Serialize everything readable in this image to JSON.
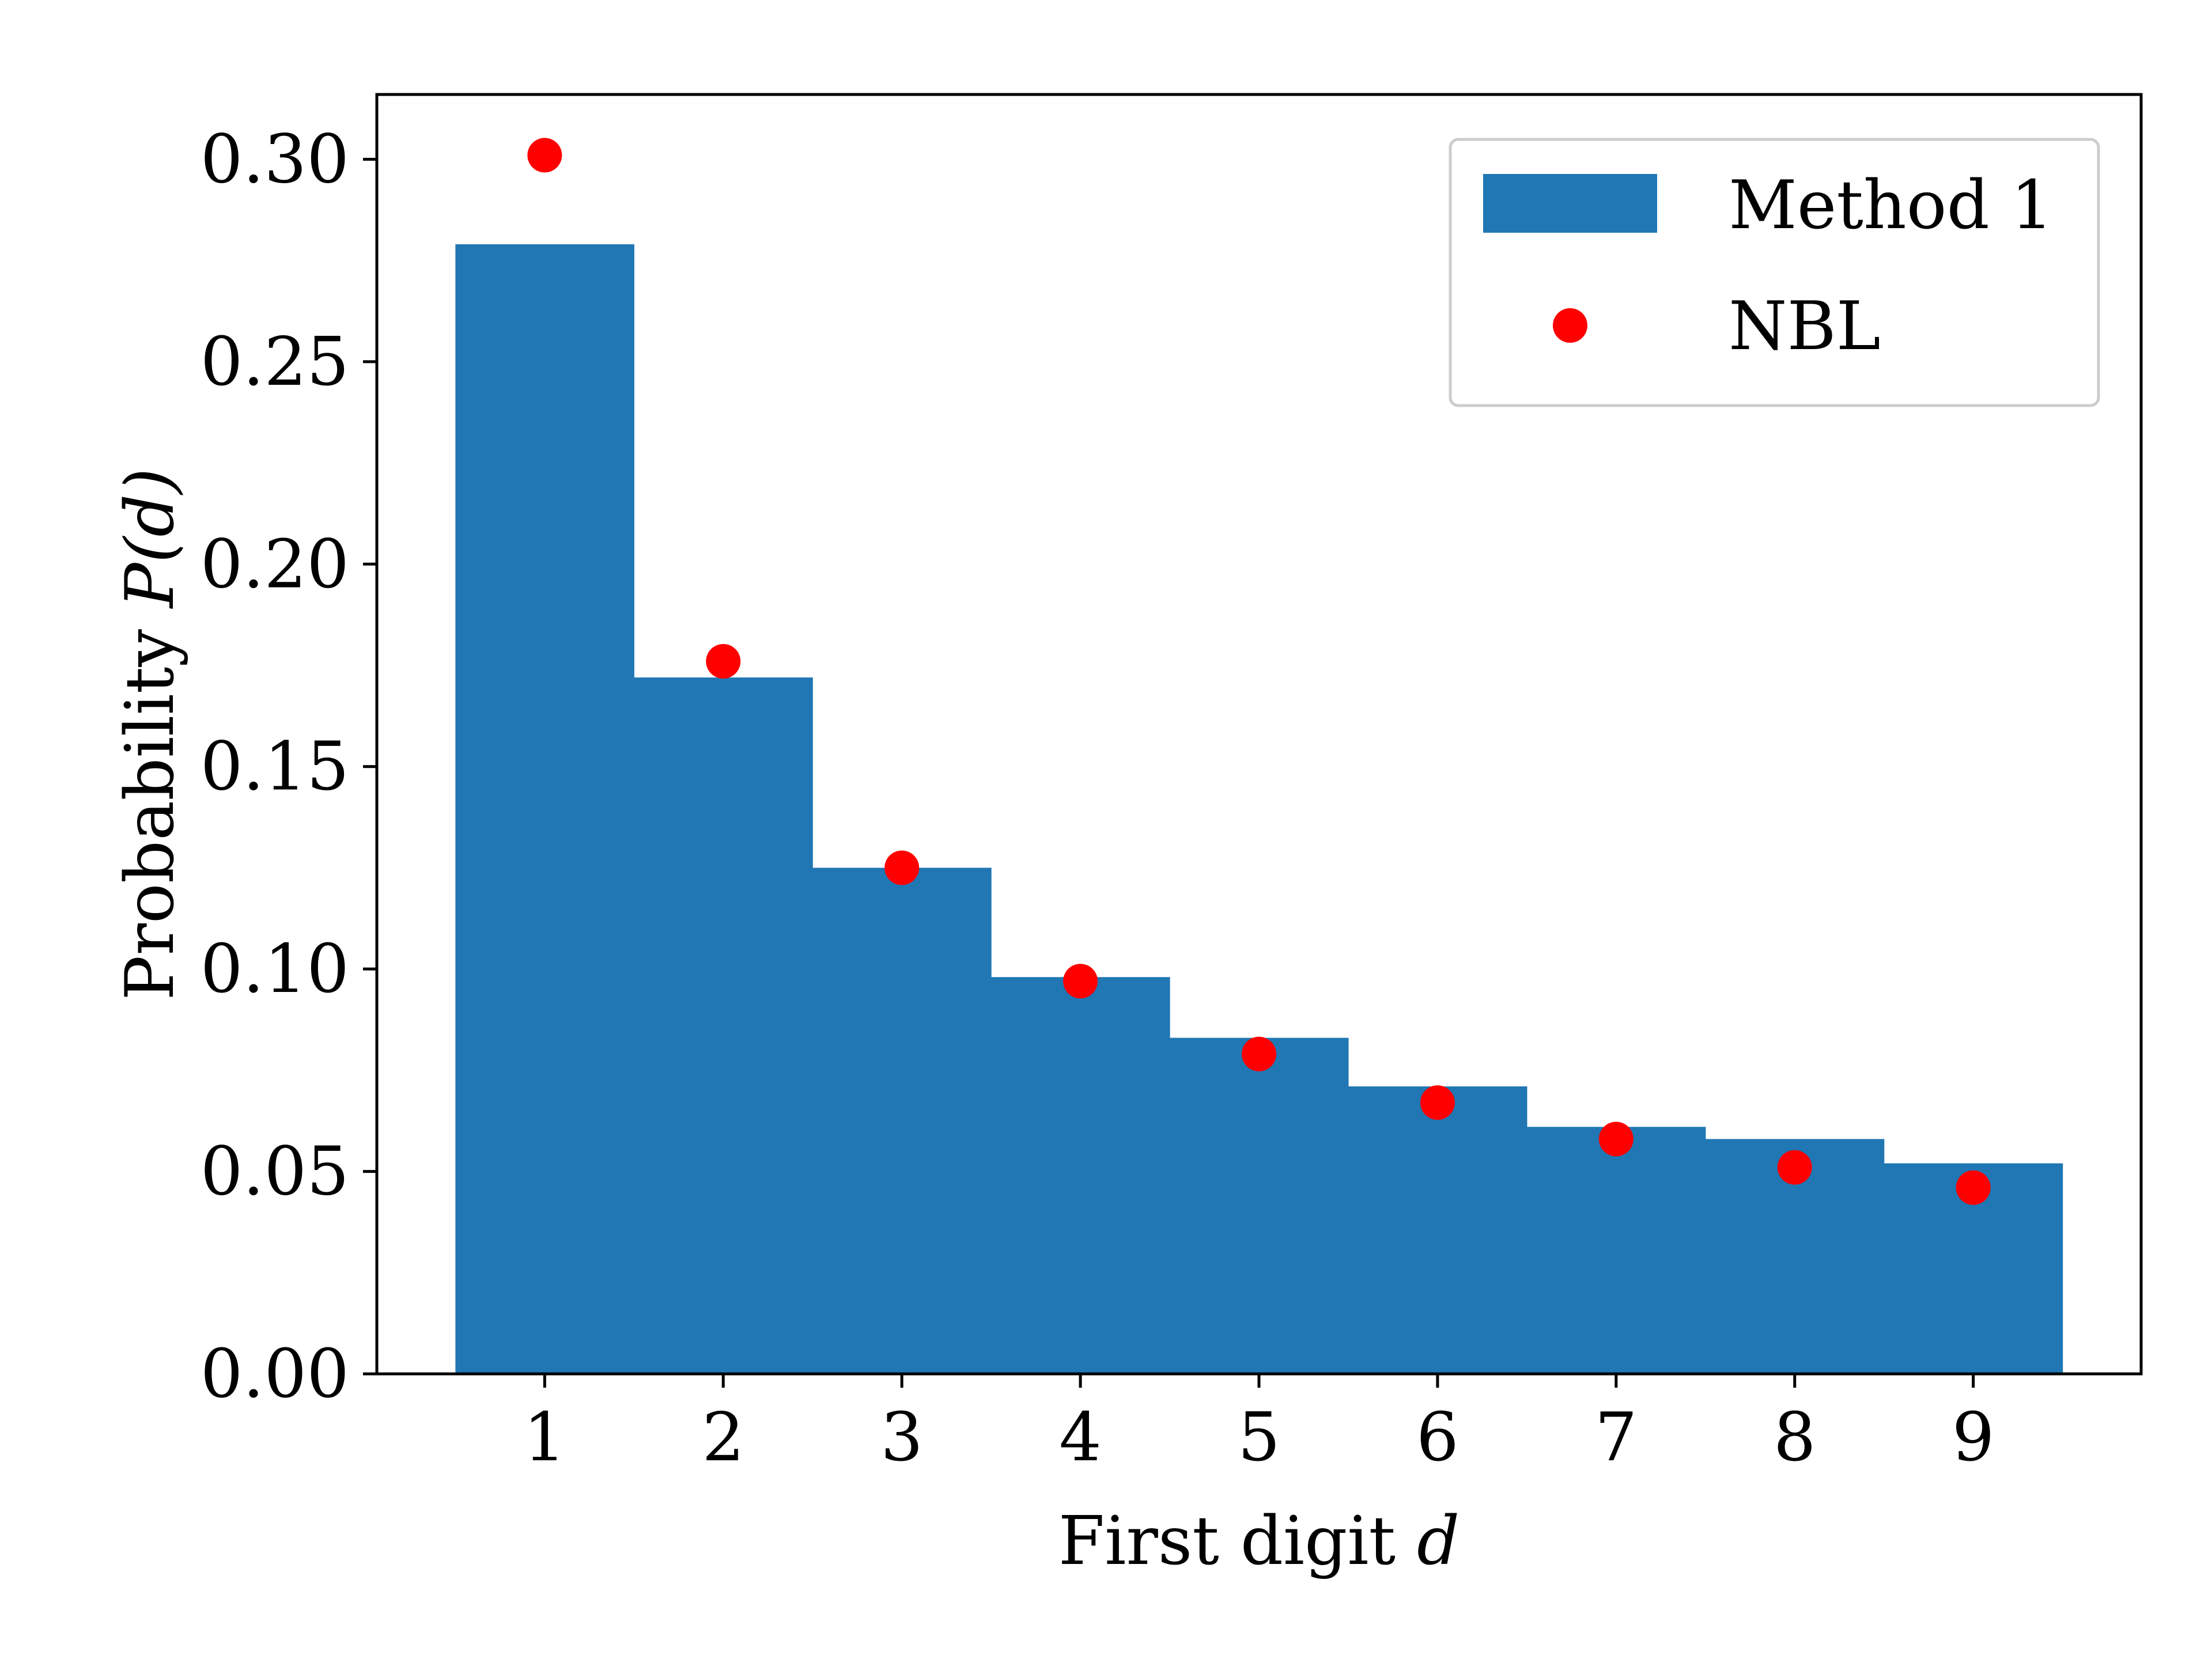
{
  "chart_data": {
    "type": "bar",
    "categories": [
      "1",
      "2",
      "3",
      "4",
      "5",
      "6",
      "7",
      "8",
      "9"
    ],
    "x": [
      1,
      2,
      3,
      4,
      5,
      6,
      7,
      8,
      9
    ],
    "series": [
      {
        "name": "Method 1",
        "kind": "bar",
        "color": "#2077b4",
        "values": [
          0.279,
          0.172,
          0.125,
          0.098,
          0.083,
          0.071,
          0.061,
          0.058,
          0.052
        ]
      },
      {
        "name": "NBL",
        "kind": "scatter",
        "color": "#ff0000",
        "values": [
          0.301,
          0.176,
          0.125,
          0.097,
          0.079,
          0.067,
          0.058,
          0.051,
          0.046
        ]
      }
    ],
    "xlabel": "First digit d",
    "xlabel_text": "First digit ",
    "xlabel_var": "d",
    "ylabel": "Probability P(d)",
    "ylabel_text": "Probability ",
    "ylabel_var": "P(d)",
    "xlim": [
      0.06,
      9.94
    ],
    "ylim": [
      0.0,
      0.316
    ],
    "yticks": [
      0.0,
      0.05,
      0.1,
      0.15,
      0.2,
      0.25,
      0.3
    ],
    "ytick_labels": [
      "0.00",
      "0.05",
      "0.10",
      "0.15",
      "0.20",
      "0.25",
      "0.30"
    ],
    "grid": false,
    "legend_position": "top-right"
  }
}
